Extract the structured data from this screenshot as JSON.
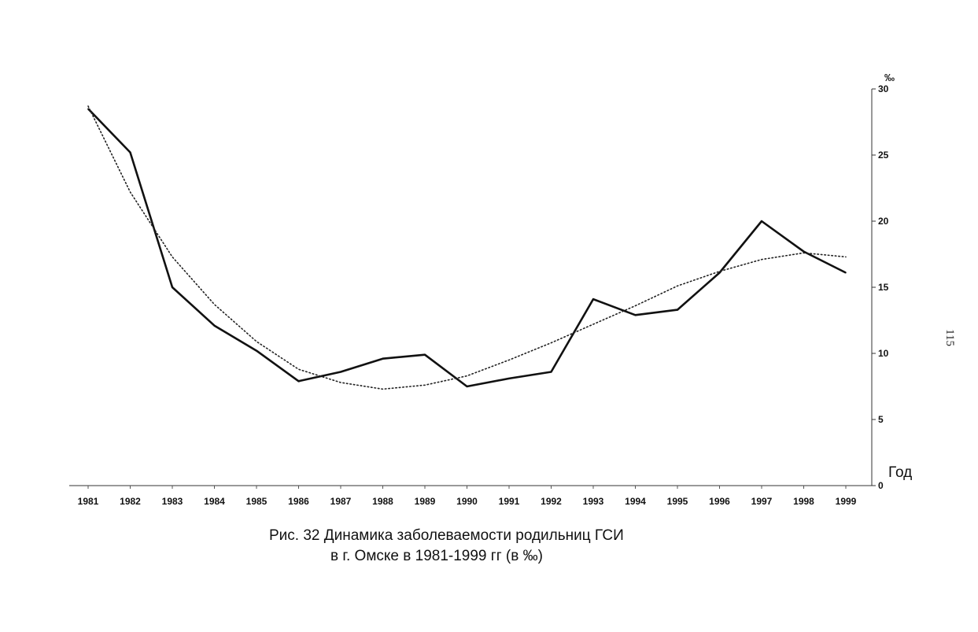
{
  "page_number": "115",
  "caption": {
    "line1": "Рис. 32  Динамика заболеваемости родильниц ГСИ",
    "line2": "в г. Омске в 1981-1999 гг  (в ‰)"
  },
  "chart_data": {
    "type": "line",
    "categories": [
      "1981",
      "1982",
      "1983",
      "1984",
      "1985",
      "1986",
      "1987",
      "1988",
      "1989",
      "1990",
      "1991",
      "1992",
      "1993",
      "1994",
      "1995",
      "1996",
      "1997",
      "1998",
      "1999"
    ],
    "series": [
      {
        "values": [
          28.5,
          25.2,
          15.0,
          12.1,
          10.2,
          7.9,
          8.6,
          9.6,
          9.9,
          7.5,
          8.1,
          8.6,
          14.1,
          12.9,
          13.3,
          16.1,
          20.0,
          17.7,
          16.1
        ]
      },
      {
        "values": [
          28.7,
          22.2,
          17.3,
          13.7,
          10.9,
          8.8,
          7.8,
          7.3,
          7.6,
          8.3,
          9.5,
          10.8,
          12.2,
          13.6,
          15.1,
          16.2,
          17.1,
          17.6,
          17.3
        ]
      }
    ],
    "ylabel": "‰",
    "xlabel": "Год",
    "ylim": [
      0,
      30
    ],
    "yticks": [
      "0",
      "5",
      "10",
      "15",
      "20",
      "25",
      "30"
    ],
    "y_axis_side": "right",
    "grid": false,
    "legend": "none"
  }
}
